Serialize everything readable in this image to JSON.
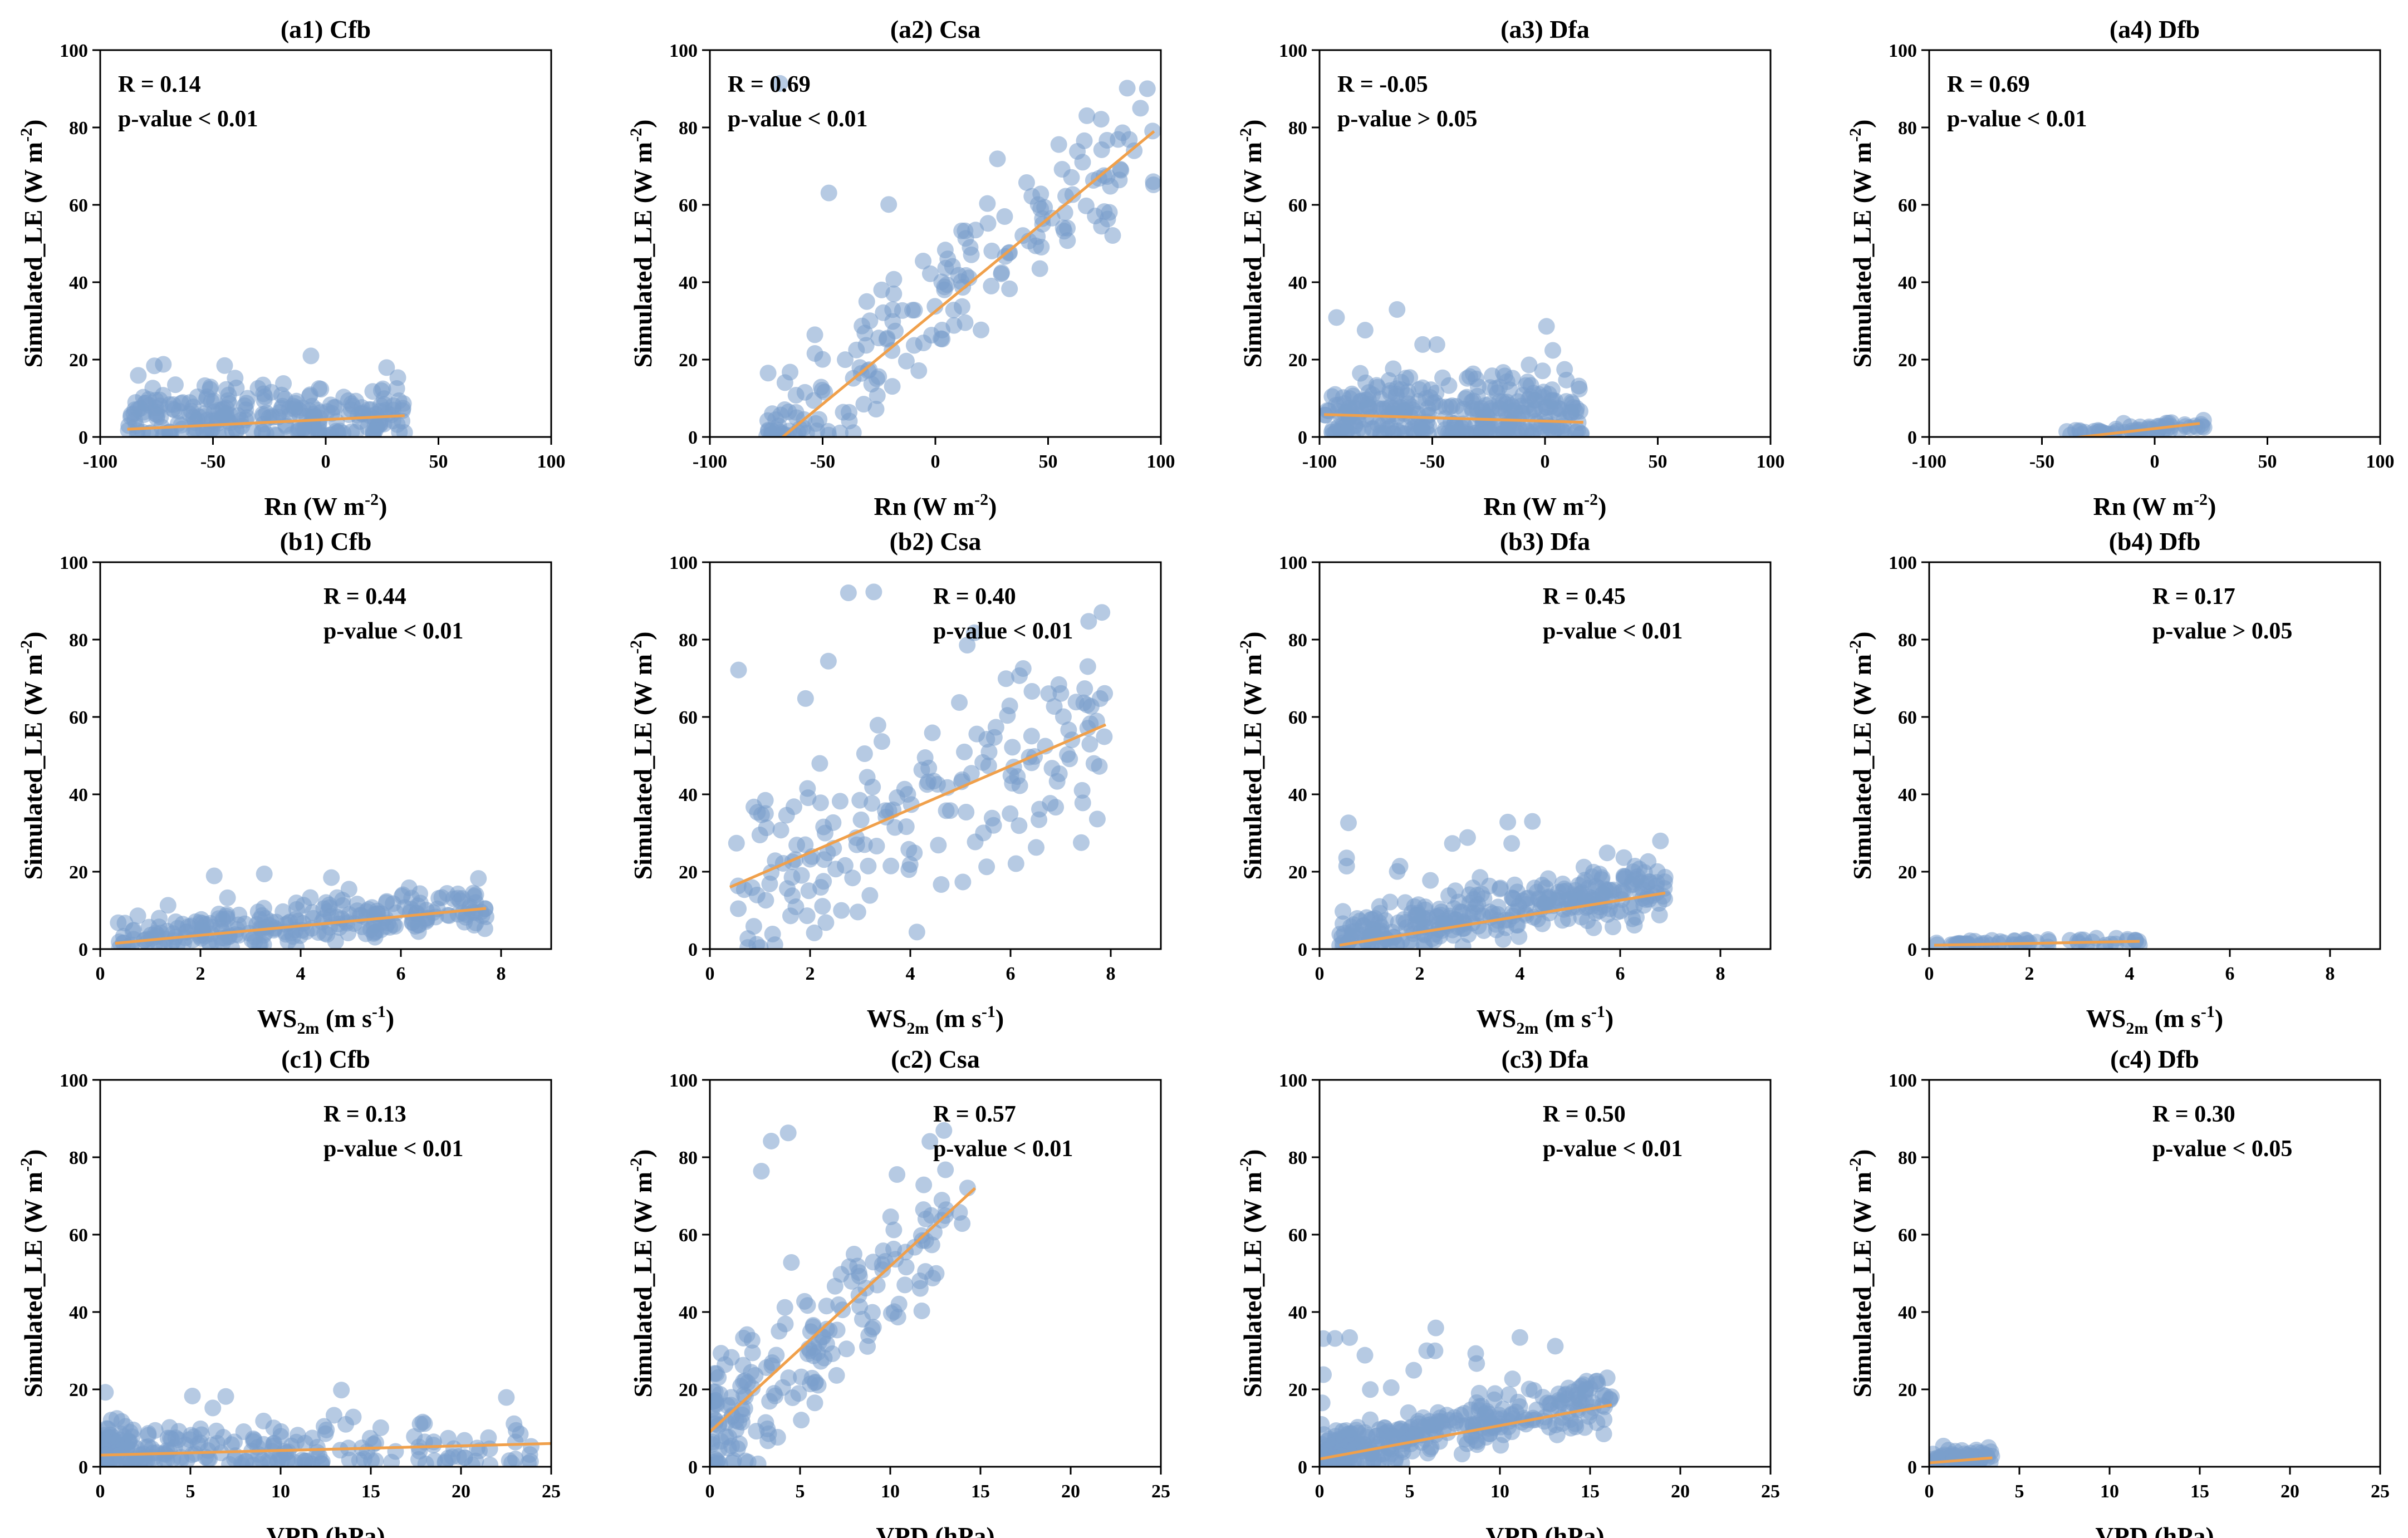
{
  "figure": {
    "point_color": "#7a9fcc",
    "line_color": "#f0a04b",
    "ylabel": "Simulated_LE (W m",
    "ylabel_sup": "-2",
    "ylabel_end": ")"
  },
  "chart_data": [
    {
      "id": "a1",
      "type": "scatter",
      "title": "(a1) Cfb",
      "xlabel": "Rn (W m",
      "xlabel_sup": "-2",
      "xlabel_end": ")",
      "xlim": [
        -100,
        100
      ],
      "xticks": [
        -100,
        -50,
        0,
        50,
        100
      ],
      "ylim": [
        0,
        100
      ],
      "yticks": [
        0,
        20,
        40,
        60,
        80,
        100
      ],
      "r_text": "R = 0.14",
      "p_text": "p-value < 0.01",
      "annot_pos": "top-left",
      "cloud": {
        "xmin": -88,
        "xmax": 35,
        "ycenter": 5,
        "yspread": 6,
        "ymax": 21,
        "n": 260,
        "seed": 11
      },
      "fit": {
        "x": [
          -88,
          35
        ],
        "y": [
          2,
          5.5
        ]
      }
    },
    {
      "id": "a2",
      "type": "scatter",
      "title": "(a2) Csa",
      "xlabel": "Rn (W m",
      "xlabel_sup": "-2",
      "xlabel_end": ")",
      "xlim": [
        -100,
        100
      ],
      "xticks": [
        -100,
        -50,
        0,
        50,
        100
      ],
      "ylim": [
        0,
        100
      ],
      "yticks": [
        0,
        20,
        40,
        60,
        80,
        100
      ],
      "r_text": "R = 0.69",
      "p_text": "p-value < 0.01",
      "annot_pos": "top-left",
      "cloud": {
        "xmin": -75,
        "xmax": 97,
        "slope": 0.48,
        "intercept": 33,
        "yspread": 12,
        "ymax": 93,
        "n": 190,
        "seed": 23
      },
      "fit": {
        "x": [
          -75,
          97
        ],
        "y": [
          -3.5,
          79
        ]
      }
    },
    {
      "id": "a3",
      "type": "scatter",
      "title": "(a3) Dfa",
      "xlabel": "Rn (W m",
      "xlabel_sup": "-2",
      "xlabel_end": ")",
      "xlim": [
        -100,
        100
      ],
      "xticks": [
        -100,
        -50,
        0,
        50,
        100
      ],
      "ylim": [
        0,
        100
      ],
      "yticks": [
        0,
        20,
        40,
        60,
        80,
        100
      ],
      "r_text": "R = -0.05",
      "p_text": "p-value > 0.05",
      "annot_pos": "top-left",
      "cloud": {
        "xmin": -98,
        "xmax": 17,
        "ycenter": 6,
        "yspread": 7,
        "ymax": 36,
        "n": 330,
        "seed": 37
      },
      "fit": {
        "x": [
          -98,
          17
        ],
        "y": [
          5.8,
          3.8
        ]
      }
    },
    {
      "id": "a4",
      "type": "scatter",
      "title": "(a4) Dfb",
      "xlabel": "Rn (W m",
      "xlabel_sup": "-2",
      "xlabel_end": ")",
      "xlim": [
        -100,
        100
      ],
      "xticks": [
        -100,
        -50,
        0,
        50,
        100
      ],
      "ylim": [
        0,
        100
      ],
      "yticks": [
        0,
        20,
        40,
        60,
        80,
        100
      ],
      "r_text": "R = 0.69",
      "p_text": "p-value < 0.01",
      "annot_pos": "top-left",
      "cloud": {
        "xmin": -40,
        "xmax": 22,
        "slope": 0.06,
        "intercept": 2,
        "yspread": 1.2,
        "ymax": 6,
        "n": 60,
        "seed": 41
      },
      "fit": {
        "x": [
          -40,
          20
        ],
        "y": [
          -0.5,
          3.5
        ]
      }
    },
    {
      "id": "b1",
      "type": "scatter",
      "title": "(b1) Cfb",
      "xlabel": "WS",
      "xlabel_sub": "2m",
      "xlabel_end": " (m s",
      "xlabel_sup": "-1",
      "xlabel_end2": ")",
      "xlim": [
        0,
        9
      ],
      "xticks": [
        0,
        2,
        4,
        6,
        8
      ],
      "ylim": [
        0,
        100
      ],
      "yticks": [
        0,
        20,
        40,
        60,
        80,
        100
      ],
      "r_text": "R = 0.44",
      "p_text": "p-value < 0.01",
      "annot_pos": "top-right",
      "cloud": {
        "xmin": 0.3,
        "xmax": 7.7,
        "slope": 1.2,
        "intercept": 2,
        "yspread": 4,
        "ymax": 21,
        "n": 260,
        "seed": 53
      },
      "fit": {
        "x": [
          0.3,
          7.7
        ],
        "y": [
          1.5,
          10.5
        ]
      }
    },
    {
      "id": "b2",
      "type": "scatter",
      "title": "(b2) Csa",
      "xlabel": "WS",
      "xlabel_sub": "2m",
      "xlabel_end": " (m s",
      "xlabel_sup": "-1",
      "xlabel_end2": ")",
      "xlim": [
        0,
        9
      ],
      "xticks": [
        0,
        2,
        4,
        6,
        8
      ],
      "ylim": [
        0,
        100
      ],
      "yticks": [
        0,
        20,
        40,
        60,
        80,
        100
      ],
      "r_text": "R = 0.40",
      "p_text": "p-value < 0.01",
      "annot_pos": "top-right",
      "cloud": {
        "xmin": 0.4,
        "xmax": 7.9,
        "slope": 5.5,
        "intercept": 14,
        "yspread": 17,
        "ymax": 93,
        "n": 190,
        "seed": 67
      },
      "fit": {
        "x": [
          0.4,
          7.9
        ],
        "y": [
          16,
          58
        ]
      }
    },
    {
      "id": "b3",
      "type": "scatter",
      "title": "(b3) Dfa",
      "xlabel": "WS",
      "xlabel_sub": "2m",
      "xlabel_end": " (m s",
      "xlabel_sup": "-1",
      "xlabel_end2": ")",
      "xlim": [
        0,
        9
      ],
      "xticks": [
        0,
        2,
        4,
        6,
        8
      ],
      "ylim": [
        0,
        100
      ],
      "yticks": [
        0,
        20,
        40,
        60,
        80,
        100
      ],
      "r_text": "R = 0.45",
      "p_text": "p-value < 0.01",
      "annot_pos": "top-right",
      "cloud": {
        "xmin": 0.4,
        "xmax": 6.9,
        "slope": 2.0,
        "intercept": 2,
        "yspread": 5,
        "ymax": 36,
        "n": 330,
        "seed": 71
      },
      "fit": {
        "x": [
          0.4,
          6.9
        ],
        "y": [
          1,
          14.5
        ]
      }
    },
    {
      "id": "b4",
      "type": "scatter",
      "title": "(b4) Dfb",
      "xlabel": "WS",
      "xlabel_sub": "2m",
      "xlabel_end": " (m s",
      "xlabel_sup": "-1",
      "xlabel_end2": ")",
      "xlim": [
        0,
        9
      ],
      "xticks": [
        0,
        2,
        4,
        6,
        8
      ],
      "ylim": [
        0,
        100
      ],
      "yticks": [
        0,
        20,
        40,
        60,
        80,
        100
      ],
      "r_text": "R = 0.17",
      "p_text": "p-value > 0.05",
      "annot_pos": "top-right",
      "cloud": {
        "xmin": 0.1,
        "xmax": 4.4,
        "slope": 0.2,
        "intercept": 1,
        "yspread": 1,
        "ymax": 6,
        "n": 60,
        "seed": 83
      },
      "fit": {
        "x": [
          0.1,
          4.2
        ],
        "y": [
          1,
          2
        ]
      }
    },
    {
      "id": "c1",
      "type": "scatter",
      "title": "(c1) Cfb",
      "xlabel": "VPD (hPa)",
      "xlim": [
        0,
        25
      ],
      "xticks": [
        0,
        5,
        10,
        15,
        20,
        25
      ],
      "ylim": [
        0,
        100
      ],
      "yticks": [
        0,
        20,
        40,
        60,
        80,
        100
      ],
      "r_text": "R = 0.13",
      "p_text": "p-value < 0.01",
      "annot_pos": "top-right",
      "cloud": {
        "xmin": 0.2,
        "xmax": 24,
        "xskew": 2.2,
        "ycenter": 4,
        "yspread": 5,
        "ymax": 21,
        "n": 260,
        "seed": 97
      },
      "fit": {
        "x": [
          0,
          25
        ],
        "y": [
          3,
          6
        ]
      }
    },
    {
      "id": "c2",
      "type": "scatter",
      "title": "(c2) Csa",
      "xlabel": "VPD (hPa)",
      "xlim": [
        0,
        25
      ],
      "xticks": [
        0,
        5,
        10,
        15,
        20,
        25
      ],
      "ylim": [
        0,
        100
      ],
      "yticks": [
        0,
        20,
        40,
        60,
        80,
        100
      ],
      "r_text": "R = 0.57",
      "p_text": "p-value < 0.01",
      "annot_pos": "top-right",
      "cloud": {
        "xmin": 0.1,
        "xmax": 14.7,
        "xskew": 1.6,
        "slope": 4.3,
        "intercept": 8,
        "yspread": 13,
        "ymax": 93,
        "n": 190,
        "seed": 101
      },
      "fit": {
        "x": [
          0,
          14.7
        ],
        "y": [
          9,
          72
        ]
      }
    },
    {
      "id": "c3",
      "type": "scatter",
      "title": "(c3) Dfa",
      "xlabel": "VPD (hPa)",
      "xlim": [
        0,
        25
      ],
      "xticks": [
        0,
        5,
        10,
        15,
        20,
        25
      ],
      "ylim": [
        0,
        100
      ],
      "yticks": [
        0,
        20,
        40,
        60,
        80,
        100
      ],
      "r_text": "R = 0.50",
      "p_text": "p-value < 0.01",
      "annot_pos": "top-right",
      "cloud": {
        "xmin": 0.1,
        "xmax": 16.2,
        "xskew": 1.5,
        "slope": 0.9,
        "intercept": 3,
        "yspread": 5,
        "ymax": 36,
        "n": 330,
        "seed": 113
      },
      "fit": {
        "x": [
          0,
          16.2
        ],
        "y": [
          2,
          16
        ]
      }
    },
    {
      "id": "c4",
      "type": "scatter",
      "title": "(c4) Dfb",
      "xlabel": "VPD (hPa)",
      "xlim": [
        0,
        25
      ],
      "xticks": [
        0,
        5,
        10,
        15,
        20,
        25
      ],
      "ylim": [
        0,
        100
      ],
      "yticks": [
        0,
        20,
        40,
        60,
        80,
        100
      ],
      "r_text": "R = 0.30",
      "p_text": "p-value < 0.05",
      "annot_pos": "top-right",
      "cloud": {
        "xmin": 0.1,
        "xmax": 3.5,
        "slope": 0.4,
        "intercept": 1.5,
        "yspread": 1.3,
        "ymax": 6,
        "n": 60,
        "seed": 127
      },
      "fit": {
        "x": [
          0,
          3.5
        ],
        "y": [
          1,
          2.3
        ]
      }
    }
  ]
}
